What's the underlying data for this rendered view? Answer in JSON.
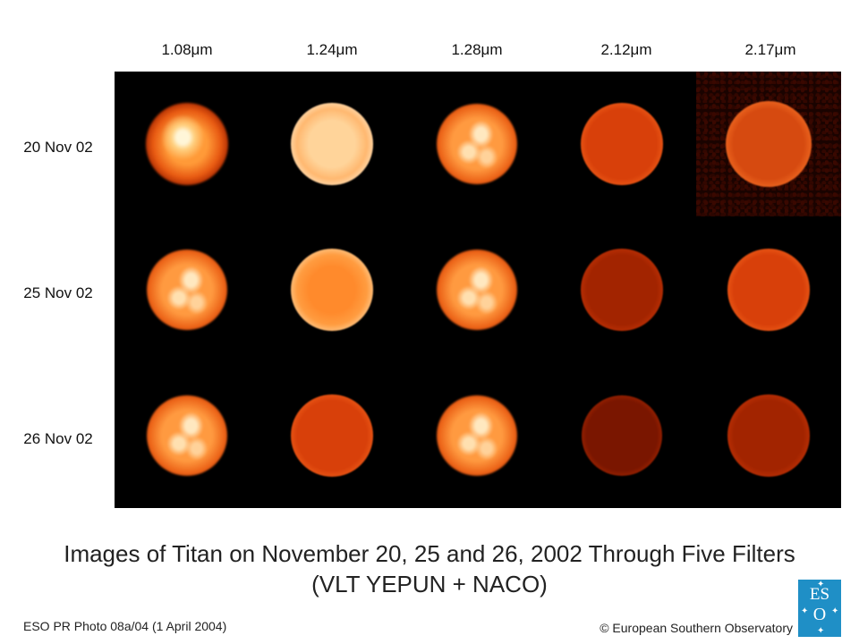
{
  "columns": [
    "1.08μm",
    "1.24μm",
    "1.28μm",
    "2.12μm",
    "2.17μm"
  ],
  "rows": [
    "20 Nov 02",
    "25 Nov 02",
    "26 Nov 02"
  ],
  "caption": {
    "line1": "Images of Titan on November 20, 25 and 26, 2002 Through Five Filters",
    "line2": "(VLT YEPUN + NACO)"
  },
  "footer": {
    "left": "ESO PR Photo 08a/04 (1 April 2004)",
    "right": "© European Southern Observatory"
  },
  "logo": {
    "line1": "ES",
    "line2": "O"
  },
  "colors": {
    "panel_background": "#000000",
    "logo_background": "#1f8fc6"
  }
}
